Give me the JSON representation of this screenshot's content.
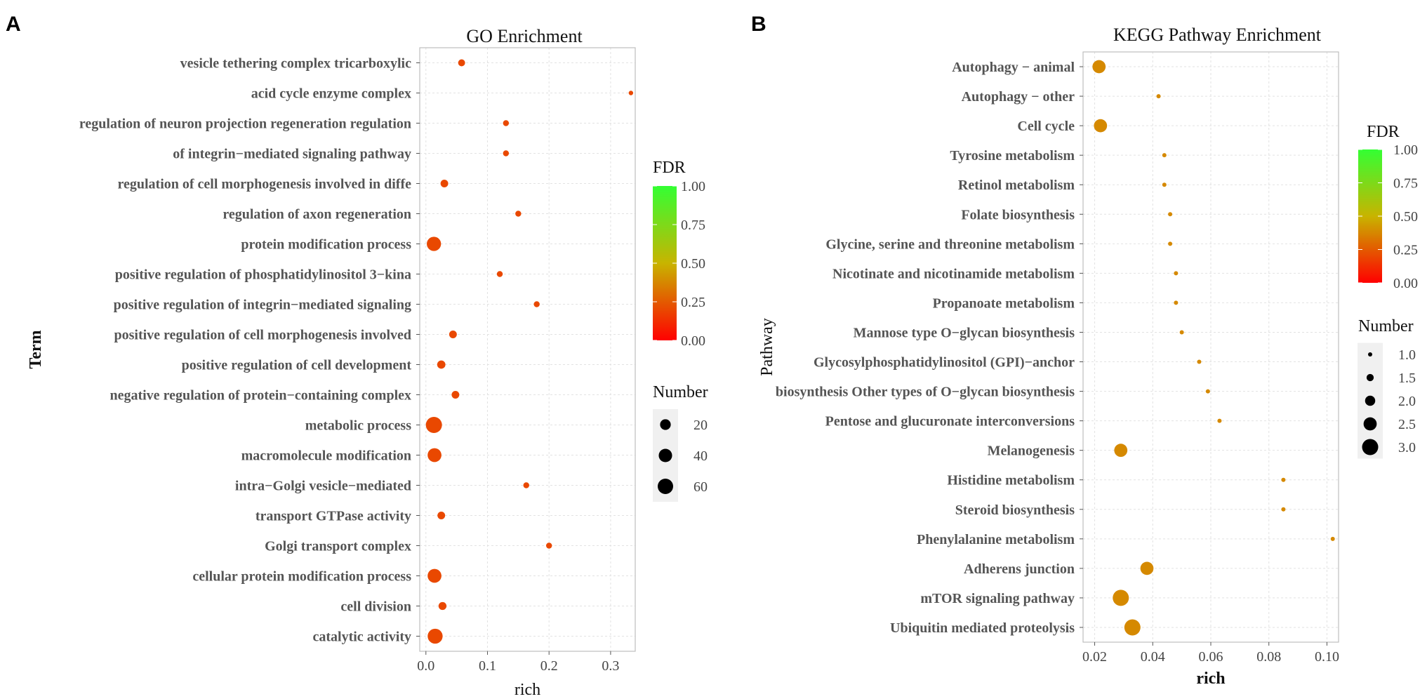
{
  "panels": {
    "a": {
      "letter": "A"
    },
    "b": {
      "letter": "B"
    }
  },
  "chart_data": [
    {
      "type": "scatter",
      "title": "GO Enrichment",
      "xlabel": "rich",
      "ylabel": "Term",
      "xlim": [
        -0.01,
        0.34
      ],
      "xticks": [
        0.0,
        0.1,
        0.2,
        0.3
      ],
      "xtick_labels": [
        "0.0",
        "0.1",
        "0.2",
        "0.3"
      ],
      "grid": true,
      "categories": [
        "vesicle tethering complex tricarboxylic",
        "acid cycle enzyme complex",
        "regulation of neuron projection regeneration regulation",
        "of integrin−mediated signaling pathway",
        "regulation of cell morphogenesis involved in diffe",
        "regulation of axon regeneration",
        "protein  modification  process",
        "positive regulation of phosphatidylinositol 3−kina",
        "positive regulation of integrin−mediated signaling",
        "positive regulation of cell morphogenesis involved",
        "positive regulation of cell development",
        "negative regulation of protein−containing complex",
        "metabolic process",
        "macromolecule modification",
        "intra−Golgi vesicle−mediated",
        "transport GTPase activity",
        "Golgi transport complex",
        "cellular protein modification process",
        "cell division",
        "catalytic activity"
      ],
      "rich": [
        0.058,
        0.333,
        0.13,
        0.13,
        0.03,
        0.15,
        0.013,
        0.12,
        0.18,
        0.044,
        0.025,
        0.048,
        0.013,
        0.014,
        0.163,
        0.025,
        0.2,
        0.014,
        0.027,
        0.015
      ],
      "number": [
        4,
        1,
        2,
        2,
        6,
        2,
        48,
        2,
        2,
        6,
        8,
        6,
        68,
        44,
        2,
        6,
        2,
        44,
        7,
        55
      ],
      "fdr": [
        0.2,
        0.2,
        0.2,
        0.2,
        0.2,
        0.2,
        0.2,
        0.2,
        0.2,
        0.2,
        0.2,
        0.2,
        0.2,
        0.2,
        0.2,
        0.2,
        0.2,
        0.2,
        0.2,
        0.2
      ],
      "fdr_legend": {
        "title": "FDR",
        "labels": [
          "1.00",
          "0.75",
          "0.50",
          "0.25",
          "0.00"
        ],
        "low_color": "#ff0000",
        "high_color": "#33ff33"
      },
      "size_legend": {
        "title": "Number",
        "labels": [
          "20",
          "40",
          "60"
        ],
        "values": [
          20,
          40,
          60
        ]
      }
    },
    {
      "type": "scatter",
      "title": "KEGG Pathway Enrichment",
      "xlabel": "rich",
      "ylabel": "Pathway",
      "xlim": [
        0.016,
        0.104
      ],
      "xticks": [
        0.02,
        0.04,
        0.06,
        0.08,
        0.1
      ],
      "xtick_labels": [
        "0.02",
        "0.04",
        "0.06",
        "0.08",
        "0.10"
      ],
      "grid": true,
      "categories": [
        "Autophagy − animal",
        "Autophagy − other",
        "Cell cycle",
        "Tyrosine metabolism",
        "Retinol metabolism",
        "Folate biosynthesis",
        "Glycine, serine and threonine metabolism",
        "Nicotinate and nicotinamide metabolism",
        "Propanoate metabolism",
        "Mannose type O−glycan biosynthesis",
        "Glycosylphosphatidylinositol (GPI)−anchor",
        "biosynthesis Other types of O−glycan biosynthesis",
        "Pentose and glucuronate interconversions",
        "Melanogenesis",
        "Histidine metabolism",
        "Steroid biosynthesis",
        "Phenylalanine metabolism",
        "Adherens junction",
        "mTOR signaling pathway",
        "Ubiquitin mediated proteolysis"
      ],
      "rich": [
        0.0215,
        0.042,
        0.022,
        0.044,
        0.044,
        0.046,
        0.046,
        0.048,
        0.048,
        0.05,
        0.056,
        0.059,
        0.063,
        0.029,
        0.085,
        0.085,
        0.102,
        0.038,
        0.029,
        0.033
      ],
      "number": [
        2.5,
        1,
        2.5,
        1,
        1,
        1,
        1,
        1,
        1,
        1,
        1,
        1,
        1,
        2.5,
        1,
        1,
        1,
        2.5,
        3,
        3
      ],
      "fdr": [
        0.38,
        0.38,
        0.38,
        0.38,
        0.38,
        0.38,
        0.38,
        0.38,
        0.38,
        0.38,
        0.38,
        0.38,
        0.38,
        0.38,
        0.38,
        0.38,
        0.38,
        0.38,
        0.38,
        0.38
      ],
      "fdr_legend": {
        "title": "FDR",
        "labels": [
          "1.00",
          "0.75",
          "0.50",
          "0.25",
          "0.00"
        ],
        "low_color": "#ff0000",
        "high_color": "#33ff33"
      },
      "size_legend": {
        "title": "Number",
        "labels": [
          "1.0",
          "1.5",
          "2.0",
          "2.5",
          "3.0"
        ],
        "values": [
          1,
          1.5,
          2,
          2.5,
          3
        ]
      }
    }
  ]
}
